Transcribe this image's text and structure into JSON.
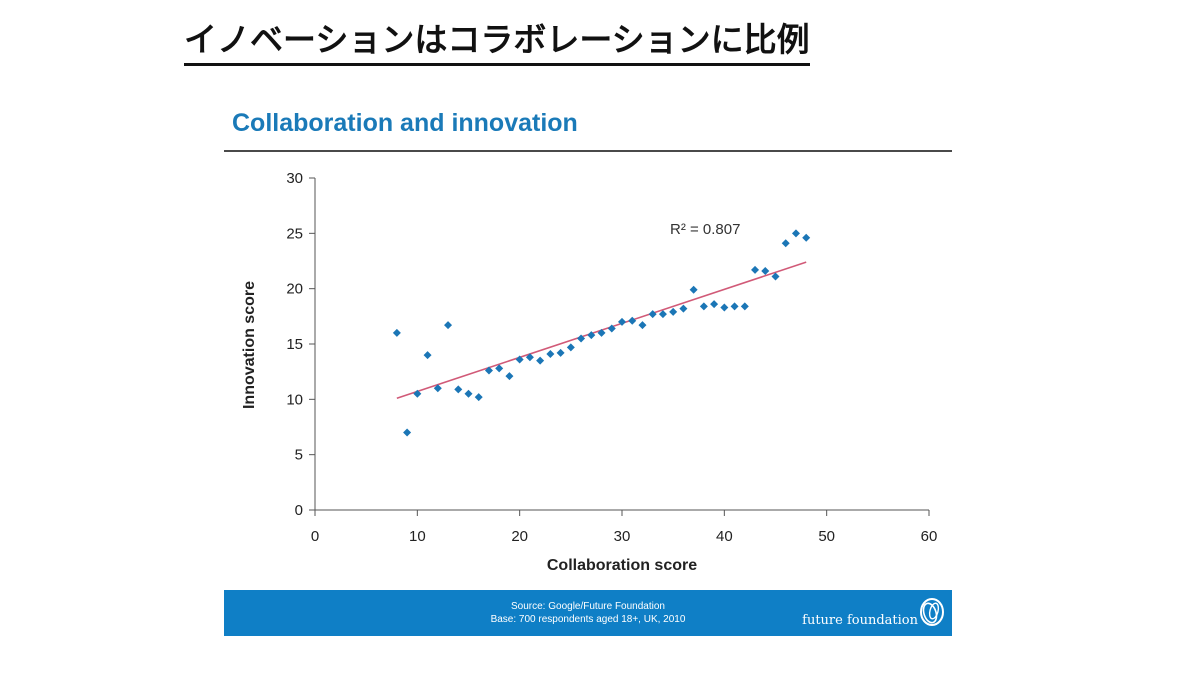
{
  "page": {
    "heading": "イノベーションはコラボレーションに比例"
  },
  "colors": {
    "title": "#1a7ab8",
    "band": "#0f7fc6",
    "point": "#1b76b6",
    "trendline": "#d15a78",
    "axis": "#555555"
  },
  "footer": {
    "source_line1": "Source: Google/Future Foundation",
    "source_line2": "Base: 700 respondents aged 18+, UK, 2010",
    "brand_text": "future foundation",
    "brand_logo_icon": "ff-swirl-logo-icon"
  },
  "chart_data": {
    "type": "scatter",
    "title": "Collaboration and innovation",
    "xlabel": "Collaboration score",
    "ylabel": "Innovation score",
    "xlim": [
      0,
      60
    ],
    "ylim": [
      0,
      30
    ],
    "xticks": [
      0,
      10,
      20,
      30,
      40,
      50,
      60
    ],
    "yticks": [
      0,
      5,
      10,
      15,
      20,
      25,
      30
    ],
    "grid": false,
    "legend": "none",
    "annotation": "R² = 0.807",
    "points": [
      [
        8,
        16.0
      ],
      [
        9,
        7.0
      ],
      [
        10,
        10.5
      ],
      [
        11,
        14.0
      ],
      [
        12,
        11.0
      ],
      [
        13,
        16.7
      ],
      [
        14,
        10.9
      ],
      [
        15,
        10.5
      ],
      [
        16,
        10.2
      ],
      [
        17,
        12.6
      ],
      [
        18,
        12.8
      ],
      [
        19,
        12.1
      ],
      [
        20,
        13.6
      ],
      [
        21,
        13.8
      ],
      [
        22,
        13.5
      ],
      [
        23,
        14.1
      ],
      [
        24,
        14.2
      ],
      [
        25,
        14.7
      ],
      [
        26,
        15.5
      ],
      [
        27,
        15.8
      ],
      [
        28,
        16.0
      ],
      [
        29,
        16.4
      ],
      [
        30,
        17.0
      ],
      [
        31,
        17.1
      ],
      [
        32,
        16.7
      ],
      [
        33,
        17.7
      ],
      [
        34,
        17.7
      ],
      [
        35,
        17.9
      ],
      [
        36,
        18.2
      ],
      [
        37,
        19.9
      ],
      [
        38,
        18.4
      ],
      [
        39,
        18.6
      ],
      [
        40,
        18.3
      ],
      [
        41,
        18.4
      ],
      [
        42,
        18.4
      ],
      [
        43,
        21.7
      ],
      [
        44,
        21.6
      ],
      [
        45,
        21.1
      ],
      [
        46,
        24.1
      ],
      [
        47,
        25.0
      ],
      [
        48,
        24.6
      ]
    ],
    "trendline": {
      "x": [
        8,
        48
      ],
      "y": [
        10.1,
        22.4
      ]
    }
  }
}
